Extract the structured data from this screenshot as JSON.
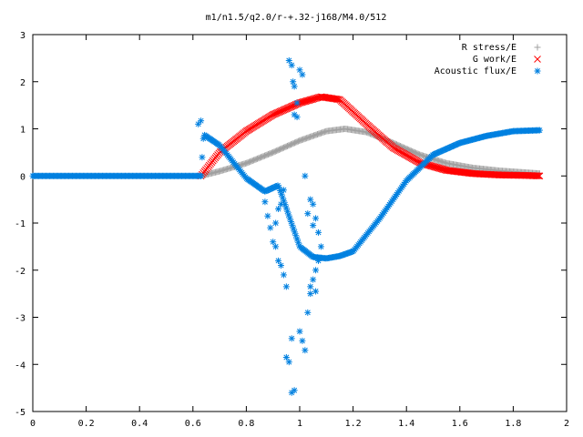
{
  "chart_data": {
    "type": "scatter",
    "title": "m1/n1.5/q2.0/r-+.32-j168/M4.0/512",
    "xlabel": "",
    "ylabel": "",
    "xlim": [
      0,
      2
    ],
    "ylim": [
      -5,
      3
    ],
    "xticks": [
      "0",
      "0.2",
      "0.4",
      "0.6",
      "0.8",
      "1",
      "1.2",
      "1.4",
      "1.6",
      "1.8",
      "2"
    ],
    "yticks": [
      "3",
      "2",
      "1",
      "0",
      "-1",
      "-2",
      "-3",
      "-4",
      "-5"
    ],
    "grid": false,
    "legend_position": "top-right",
    "series": [
      {
        "name": "R stress/E",
        "marker": "+",
        "color": "#a0a0a0",
        "x": [
          0.63,
          0.7,
          0.8,
          0.9,
          1.0,
          1.1,
          1.17,
          1.25,
          1.35,
          1.45,
          1.55,
          1.65,
          1.75,
          1.85,
          1.9
        ],
        "y": [
          0.0,
          0.1,
          0.27,
          0.5,
          0.75,
          0.95,
          1.0,
          0.93,
          0.7,
          0.45,
          0.27,
          0.17,
          0.11,
          0.07,
          0.05
        ]
      },
      {
        "name": "G work/E",
        "marker": "x",
        "color": "#ff0000",
        "x": [
          0.63,
          0.7,
          0.8,
          0.9,
          1.0,
          1.08,
          1.15,
          1.25,
          1.35,
          1.45,
          1.55,
          1.65,
          1.75,
          1.85,
          1.9
        ],
        "y": [
          0.0,
          0.5,
          0.95,
          1.3,
          1.55,
          1.68,
          1.62,
          1.1,
          0.6,
          0.28,
          0.12,
          0.05,
          0.02,
          0.01,
          0.0
        ]
      },
      {
        "name": "Acoustic flux/E",
        "marker": "*",
        "color": "#0080e0",
        "curve": {
          "x": [
            0.0,
            0.63,
            0.64,
            0.7,
            0.75,
            0.8,
            0.87,
            0.92,
            1.0,
            1.05,
            1.1,
            1.15,
            1.2,
            1.3,
            1.4,
            1.5,
            1.6,
            1.7,
            1.8,
            1.9
          ],
          "y": [
            0.0,
            0.0,
            0.88,
            0.65,
            0.3,
            -0.05,
            -0.33,
            -0.2,
            -1.5,
            -1.72,
            -1.75,
            -1.7,
            -1.6,
            -0.9,
            -0.1,
            0.45,
            0.7,
            0.85,
            0.95,
            0.97
          ]
        },
        "scatter": {
          "x": [
            0.62,
            0.63,
            0.87,
            0.88,
            0.89,
            0.9,
            0.91,
            0.92,
            0.93,
            0.94,
            0.95,
            0.96,
            0.97,
            0.975,
            0.98,
            0.99,
            0.97,
            0.98,
            1.0,
            1.01,
            1.02,
            1.03,
            1.04,
            1.05,
            1.06,
            1.07,
            1.08,
            0.95,
            0.94,
            0.93,
            0.92,
            0.91,
            0.96,
            0.97,
            1.0,
            1.01,
            1.04,
            1.05,
            1.06,
            1.07,
            1.03,
            1.05,
            0.98,
            0.99,
            1.02,
            1.04,
            1.06
          ],
          "y": [
            1.1,
            1.17,
            -0.55,
            -0.85,
            -1.1,
            -1.4,
            -1.5,
            -1.8,
            -1.9,
            -2.1,
            -2.35,
            2.45,
            2.35,
            2.0,
            1.9,
            1.55,
            -4.6,
            -4.55,
            -3.3,
            -3.5,
            -3.7,
            -2.9,
            -2.5,
            -2.2,
            -2.0,
            -1.8,
            -1.5,
            -3.85,
            -0.3,
            -0.6,
            -0.7,
            -1.0,
            -3.95,
            -3.45,
            2.25,
            2.15,
            -0.5,
            -0.6,
            -0.9,
            -1.2,
            -0.8,
            -1.05,
            1.3,
            1.25,
            0.0,
            -2.35,
            -2.45
          ]
        }
      }
    ]
  }
}
